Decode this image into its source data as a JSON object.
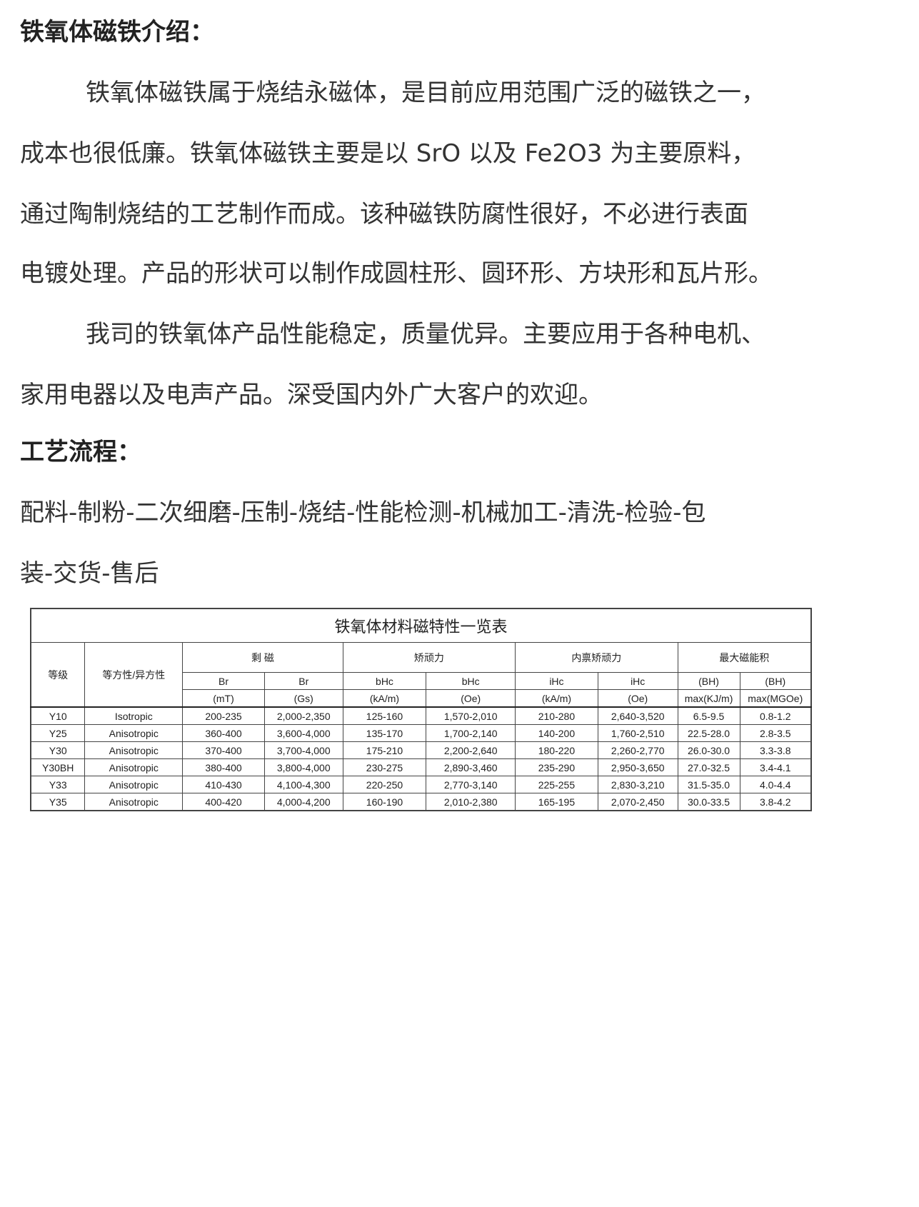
{
  "intro": {
    "heading": "铁氧体磁铁介绍：",
    "lines": [
      "铁氧体磁铁属于烧结永磁体，是目前应用范围广泛的磁铁之一，",
      "成本也很低廉。铁氧体磁铁主要是以 SrO 以及 Fe2O3 为主要原料，",
      "通过陶制烧结的工艺制作而成。该种磁铁防腐性很好，不必进行表面",
      "电镀处理。产品的形状可以制作成圆柱形、圆环形、方块形和瓦片形。",
      "我司的铁氧体产品性能稳定，质量优异。主要应用于各种电机、",
      "家用电器以及电声产品。深受国内外广大客户的欢迎。"
    ]
  },
  "process": {
    "heading": "工艺流程：",
    "lines": [
      "配料-制粉-二次细磨-压制-烧结-性能检测-机械加工-清洗-检验-包",
      "装-交货-售后"
    ]
  },
  "table": {
    "title": "铁氧体材料磁特性一览表",
    "grade_header": "等级",
    "type_header": "等方性/异方性",
    "groups": [
      "剩 磁",
      "矫顽力",
      "内禀矫顽力",
      "最大磁能积"
    ],
    "sub1": [
      "Br",
      "Br",
      "bHc",
      "bHc",
      "iHc",
      "iHc",
      "(BH)",
      "(BH)"
    ],
    "sub2": [
      "(mT)",
      "(Gs)",
      "(kA/m)",
      "(Oe)",
      "(kA/m)",
      "(Oe)",
      "max(KJ/m)",
      "max(MGOe)"
    ],
    "rows": [
      [
        "Y10",
        "Isotropic",
        "200-235",
        "2,000-2,350",
        "125-160",
        "1,570-2,010",
        "210-280",
        "2,640-3,520",
        "6.5-9.5",
        "0.8-1.2"
      ],
      [
        "Y25",
        "Anisotropic",
        "360-400",
        "3,600-4,000",
        "135-170",
        "1,700-2,140",
        "140-200",
        "1,760-2,510",
        "22.5-28.0",
        "2.8-3.5"
      ],
      [
        "Y30",
        "Anisotropic",
        "370-400",
        "3,700-4,000",
        "175-210",
        "2,200-2,640",
        "180-220",
        "2,260-2,770",
        "26.0-30.0",
        "3.3-3.8"
      ],
      [
        "Y30BH",
        "Anisotropic",
        "380-400",
        "3,800-4,000",
        "230-275",
        "2,890-3,460",
        "235-290",
        "2,950-3,650",
        "27.0-32.5",
        "3.4-4.1"
      ],
      [
        "Y33",
        "Anisotropic",
        "410-430",
        "4,100-4,300",
        "220-250",
        "2,770-3,140",
        "225-255",
        "2,830-3,210",
        "31.5-35.0",
        "4.0-4.4"
      ],
      [
        "Y35",
        "Anisotropic",
        "400-420",
        "4,000-4,200",
        "160-190",
        "2,010-2,380",
        "165-195",
        "2,070-2,450",
        "30.0-33.5",
        "3.8-4.2"
      ]
    ]
  }
}
